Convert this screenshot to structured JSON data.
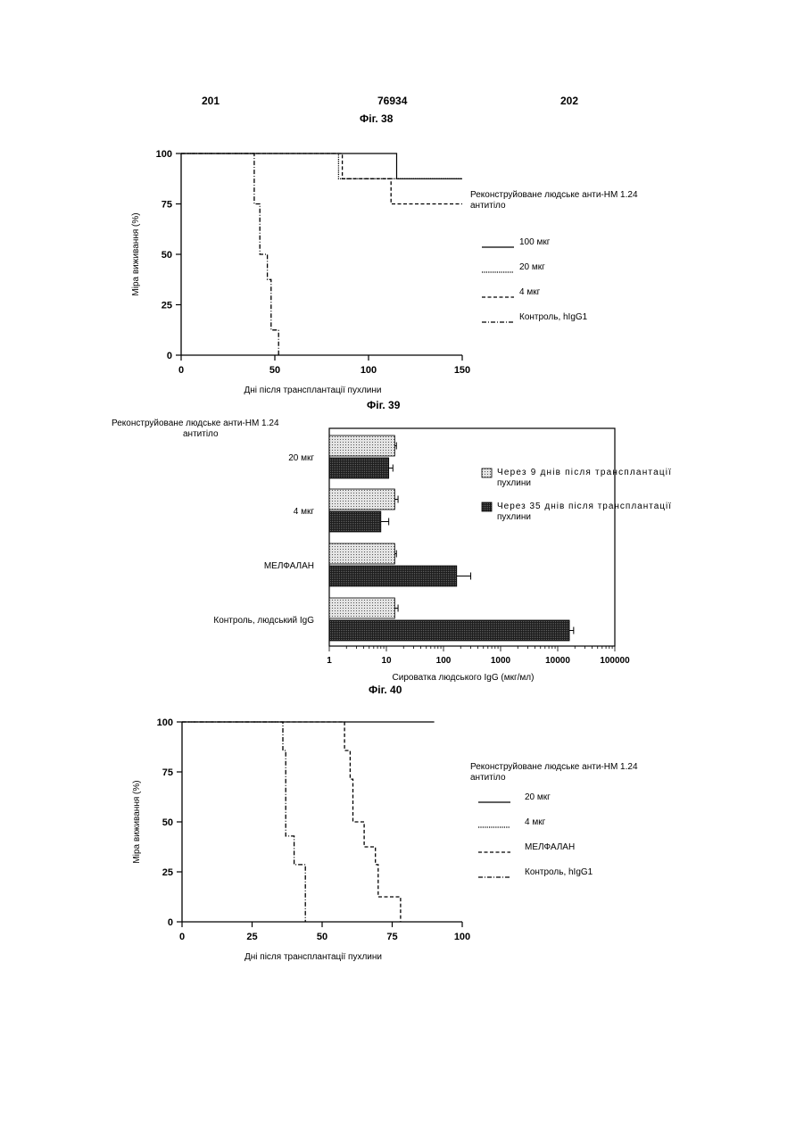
{
  "header": {
    "left": "201",
    "center": "76934",
    "right": "202"
  },
  "chart_data": [
    {
      "id": "fig38",
      "type": "line",
      "title": "Фіг. 38",
      "xlabel": "Дні після трансплантації пухлини",
      "ylabel": "Міра виживання (%)",
      "xlim": [
        0,
        150
      ],
      "ylim": [
        0,
        100
      ],
      "xticks": [
        "0",
        "50",
        "100",
        "150"
      ],
      "yticks": [
        "0",
        "25",
        "50",
        "75",
        "100"
      ],
      "legend_title": "Реконструйоване людське анти-НМ 1.24 антитіло",
      "series": [
        {
          "name": "100 мкг",
          "style": "solid",
          "points": [
            [
              0,
              100
            ],
            [
              115,
              100
            ],
            [
              115,
              87.5
            ],
            [
              150,
              87.5
            ]
          ]
        },
        {
          "name": "20 мкг",
          "style": "dotted",
          "points": [
            [
              0,
              100
            ],
            [
              84,
              100
            ],
            [
              84,
              87.5
            ],
            [
              150,
              87.5
            ]
          ]
        },
        {
          "name": "4 мкг",
          "style": "dashed",
          "points": [
            [
              0,
              100
            ],
            [
              86,
              100
            ],
            [
              86,
              87.5
            ],
            [
              112,
              87.5
            ],
            [
              112,
              75
            ],
            [
              150,
              75
            ]
          ]
        },
        {
          "name": "Контроль, hIgG1",
          "style": "dashdot",
          "points": [
            [
              0,
              100
            ],
            [
              39,
              100
            ],
            [
              39,
              75
            ],
            [
              42,
              75
            ],
            [
              42,
              50
            ],
            [
              46,
              50
            ],
            [
              46,
              37.5
            ],
            [
              48,
              37.5
            ],
            [
              48,
              12.5
            ],
            [
              52,
              12.5
            ],
            [
              52,
              0
            ]
          ]
        }
      ]
    },
    {
      "id": "fig39",
      "type": "bar",
      "orientation": "horizontal",
      "title": "Фіг. 39",
      "group_title": "Реконструйоване людське анти-НМ 1.24 антитіло",
      "xlabel": "Сироватка людського IgG (мкг/мл)",
      "xscale": "log",
      "xlim": [
        1,
        100000
      ],
      "xticks": [
        "1",
        "10",
        "100",
        "1000",
        "10000",
        "100000"
      ],
      "categories": [
        "20 мкг",
        "4 мкг",
        "МЕЛФАЛАН",
        "Контроль, людський IgG"
      ],
      "series": [
        {
          "name": "Через 9 днів після трансплантації пухлини",
          "fill": "light",
          "values": [
            14,
            14,
            14,
            14
          ],
          "errors": [
            15,
            16,
            15,
            16
          ]
        },
        {
          "name": "Через 35 днів після трансплантації пухлини",
          "fill": "dark",
          "values": [
            11,
            8,
            170,
            16000
          ],
          "errors": [
            13,
            11,
            300,
            19000
          ]
        }
      ]
    },
    {
      "id": "fig40",
      "type": "line",
      "title": "Фіг. 40",
      "xlabel": "Дні після трансплантації пухлини",
      "ylabel": "Міра виживання (%)",
      "xlim": [
        0,
        100
      ],
      "ylim": [
        0,
        100
      ],
      "xticks": [
        "0",
        "25",
        "50",
        "75",
        "100"
      ],
      "yticks": [
        "0",
        "25",
        "50",
        "75",
        "100"
      ],
      "legend_title": "Реконструйоване людське анти-НМ 1.24 антитіло",
      "series": [
        {
          "name": "20 мкг",
          "style": "solid",
          "points": [
            [
              0,
              100
            ],
            [
              90,
              100
            ]
          ]
        },
        {
          "name": "4 мкг",
          "style": "dotted",
          "points": []
        },
        {
          "name": "МЕЛФАЛАН",
          "style": "dashed",
          "points": [
            [
              0,
              100
            ],
            [
              58,
              100
            ],
            [
              58,
              85.7
            ],
            [
              60,
              85.7
            ],
            [
              60,
              71.4
            ],
            [
              61,
              71.4
            ],
            [
              61,
              50
            ],
            [
              65,
              50
            ],
            [
              65,
              37.5
            ],
            [
              69,
              37.5
            ],
            [
              69,
              28.6
            ],
            [
              70,
              28.6
            ],
            [
              70,
              12.5
            ],
            [
              78,
              12.5
            ],
            [
              78,
              0
            ]
          ]
        },
        {
          "name": "Контроль, hIgG1",
          "style": "dashdot",
          "points": [
            [
              0,
              100
            ],
            [
              36,
              100
            ],
            [
              36,
              85.7
            ],
            [
              37,
              85.7
            ],
            [
              37,
              42.9
            ],
            [
              40,
              42.9
            ],
            [
              40,
              28.6
            ],
            [
              44,
              28.6
            ],
            [
              44,
              0
            ]
          ]
        }
      ]
    }
  ]
}
